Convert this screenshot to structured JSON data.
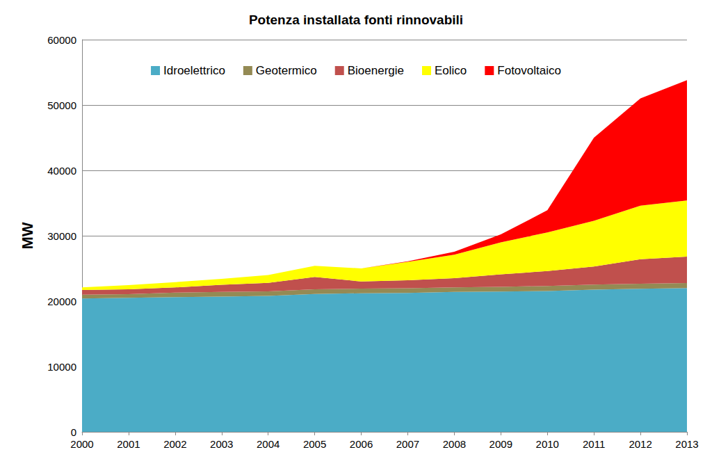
{
  "chart_data": {
    "type": "area",
    "title": "Potenza installata fonti rinnovabili",
    "y_label": "MW",
    "categories": [
      "2000",
      "2001",
      "2002",
      "2003",
      "2004",
      "2005",
      "2006",
      "2007",
      "2008",
      "2009",
      "2010",
      "2011",
      "2012",
      "2013"
    ],
    "series": [
      {
        "name": "Idroelettrico",
        "color": "#4bacc6",
        "values": [
          20400,
          20500,
          20600,
          20700,
          20800,
          21100,
          21200,
          21250,
          21400,
          21450,
          21550,
          21750,
          21900,
          22000
        ]
      },
      {
        "name": "Geotermico",
        "color": "#948a54",
        "values": [
          590,
          570,
          700,
          700,
          680,
          710,
          710,
          710,
          710,
          740,
          770,
          770,
          770,
          770
        ]
      },
      {
        "name": "Bioenergie",
        "color": "#c0504d",
        "values": [
          710,
          730,
          800,
          1100,
          1320,
          1890,
          1090,
          1240,
          1390,
          1910,
          2280,
          2780,
          3730,
          4030
        ]
      },
      {
        "name": "Eolico",
        "color": "#ffff00",
        "values": [
          400,
          650,
          800,
          900,
          1200,
          1700,
          2000,
          2800,
          3600,
          4900,
          5900,
          7000,
          8200,
          8600
        ]
      },
      {
        "name": "Fotovoltaico",
        "color": "#ff0000",
        "values": [
          0,
          0,
          0,
          0,
          0,
          0,
          10,
          90,
          450,
          1200,
          3400,
          12700,
          16400,
          18400
        ]
      }
    ],
    "stacked": true,
    "ylim": [
      0,
      60000
    ],
    "yticks": [
      0,
      10000,
      20000,
      30000,
      40000,
      50000,
      60000
    ],
    "grid": true,
    "legend": "top"
  }
}
